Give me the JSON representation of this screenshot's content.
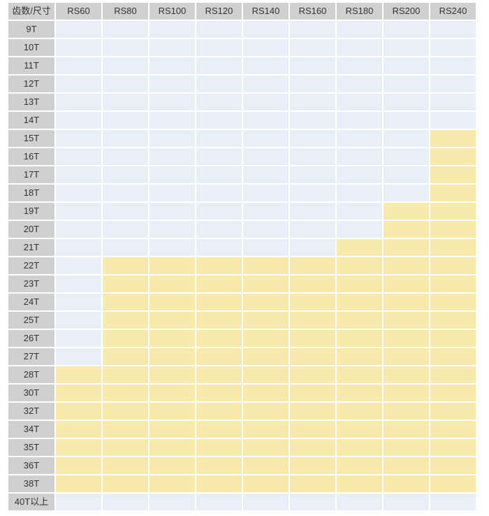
{
  "chart_data": {
    "type": "table",
    "corner_header": "齿数/尺寸",
    "column_headers": [
      "RS60",
      "RS80",
      "RS100",
      "RS120",
      "RS140",
      "RS160",
      "RS180",
      "RS200",
      "RS240"
    ],
    "row_headers": [
      "9T",
      "10T",
      "11T",
      "12T",
      "13T",
      "14T",
      "15T",
      "16T",
      "17T",
      "18T",
      "19T",
      "20T",
      "21T",
      "22T",
      "23T",
      "24T",
      "25T",
      "26T",
      "27T",
      "28T",
      "30T",
      "32T",
      "34T",
      "35T",
      "36T",
      "38T",
      "40T以上"
    ],
    "matrix": [
      [
        0,
        0,
        0,
        0,
        0,
        0,
        0,
        0,
        0
      ],
      [
        0,
        0,
        0,
        0,
        0,
        0,
        0,
        0,
        0
      ],
      [
        0,
        0,
        0,
        0,
        0,
        0,
        0,
        0,
        0
      ],
      [
        0,
        0,
        0,
        0,
        0,
        0,
        0,
        0,
        0
      ],
      [
        0,
        0,
        0,
        0,
        0,
        0,
        0,
        0,
        0
      ],
      [
        0,
        0,
        0,
        0,
        0,
        0,
        0,
        0,
        0
      ],
      [
        0,
        0,
        0,
        0,
        0,
        0,
        0,
        0,
        1
      ],
      [
        0,
        0,
        0,
        0,
        0,
        0,
        0,
        0,
        1
      ],
      [
        0,
        0,
        0,
        0,
        0,
        0,
        0,
        0,
        1
      ],
      [
        0,
        0,
        0,
        0,
        0,
        0,
        0,
        0,
        1
      ],
      [
        0,
        0,
        0,
        0,
        0,
        0,
        0,
        1,
        1
      ],
      [
        0,
        0,
        0,
        0,
        0,
        0,
        0,
        1,
        1
      ],
      [
        0,
        0,
        0,
        0,
        0,
        0,
        1,
        1,
        1
      ],
      [
        0,
        1,
        1,
        1,
        1,
        1,
        1,
        1,
        1
      ],
      [
        0,
        1,
        1,
        1,
        1,
        1,
        1,
        1,
        1
      ],
      [
        0,
        1,
        1,
        1,
        1,
        1,
        1,
        1,
        1
      ],
      [
        0,
        1,
        1,
        1,
        1,
        1,
        1,
        1,
        1
      ],
      [
        0,
        1,
        1,
        1,
        1,
        1,
        1,
        1,
        1
      ],
      [
        0,
        1,
        1,
        1,
        1,
        1,
        1,
        1,
        1
      ],
      [
        1,
        1,
        1,
        1,
        1,
        1,
        1,
        1,
        1
      ],
      [
        1,
        1,
        1,
        1,
        1,
        1,
        1,
        1,
        1
      ],
      [
        1,
        1,
        1,
        1,
        1,
        1,
        1,
        1,
        1
      ],
      [
        1,
        1,
        1,
        1,
        1,
        1,
        1,
        1,
        1
      ],
      [
        1,
        1,
        1,
        1,
        1,
        1,
        1,
        1,
        1
      ],
      [
        1,
        1,
        1,
        1,
        1,
        1,
        1,
        1,
        1
      ],
      [
        1,
        1,
        1,
        1,
        1,
        1,
        1,
        1,
        1
      ],
      [
        0,
        0,
        0,
        0,
        0,
        0,
        0,
        0,
        0
      ]
    ],
    "cell_states": {
      "1": "highlighted",
      "0": "plain"
    },
    "layout": {
      "legend": "none",
      "grid": "white 2px gaps between cells"
    },
    "colors": {
      "header_bg": "#d0d0d0",
      "highlighted_cell": "#f8e9ac",
      "plain_cell": "#e9eff6",
      "grid_gap": "#ffffff",
      "text": "#333333"
    }
  }
}
